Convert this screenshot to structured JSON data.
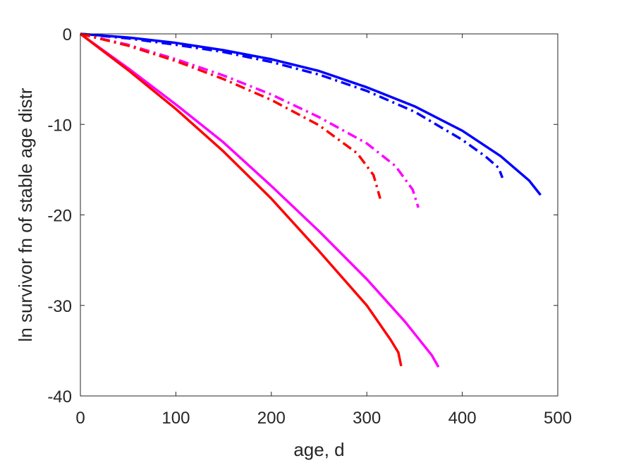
{
  "chart_data": {
    "type": "line",
    "title": "",
    "xlabel": "age, d",
    "ylabel": "ln survivor fn of stable age distr",
    "xlim": [
      0,
      500
    ],
    "ylim": [
      -40,
      0
    ],
    "xticks": [
      0,
      100,
      200,
      300,
      400,
      500
    ],
    "xtick_labels": [
      "0",
      "100",
      "200",
      "300",
      "400",
      "500"
    ],
    "yticks": [
      0,
      -10,
      -20,
      -30,
      -40
    ],
    "ytick_labels": [
      "0",
      "-10",
      "-20",
      "-30",
      "-40"
    ],
    "grid": false,
    "legend": "none",
    "series": [
      {
        "color": "#0000ff",
        "style": "solid",
        "x": [
          0,
          50,
          100,
          150,
          200,
          250,
          300,
          350,
          400,
          440,
          470,
          482
        ],
        "y": [
          0,
          -0.4,
          -1.0,
          -1.8,
          -2.8,
          -4.1,
          -5.9,
          -8.0,
          -10.7,
          -13.5,
          -16.2,
          -17.8
        ]
      },
      {
        "color": "#0000ff",
        "style": "dashdot",
        "x": [
          0,
          50,
          100,
          150,
          200,
          250,
          300,
          350,
          400,
          425,
          438,
          442
        ],
        "y": [
          0,
          -0.5,
          -1.2,
          -2.0,
          -3.1,
          -4.5,
          -6.3,
          -8.6,
          -11.7,
          -13.6,
          -14.8,
          -15.9
        ]
      },
      {
        "color": "#ff00ff",
        "style": "solid",
        "x": [
          0,
          50,
          100,
          150,
          200,
          250,
          300,
          340,
          368,
          375
        ],
        "y": [
          0,
          -3.8,
          -7.8,
          -12.0,
          -16.8,
          -21.8,
          -27.1,
          -31.8,
          -35.5,
          -36.8
        ]
      },
      {
        "color": "#ff00ff",
        "style": "dashdot",
        "x": [
          0,
          50,
          100,
          150,
          200,
          250,
          300,
          330,
          348,
          354
        ],
        "y": [
          0,
          -1.2,
          -2.8,
          -4.6,
          -6.7,
          -9.2,
          -12.1,
          -14.6,
          -17.2,
          -19.2
        ]
      },
      {
        "color": "#ff0000",
        "style": "solid",
        "x": [
          0,
          50,
          100,
          150,
          200,
          250,
          300,
          325,
          333,
          336
        ],
        "y": [
          0,
          -4.0,
          -8.3,
          -13.0,
          -18.2,
          -24.0,
          -30.0,
          -33.8,
          -35.2,
          -36.7
        ]
      },
      {
        "color": "#ff0000",
        "style": "dashdot",
        "x": [
          0,
          50,
          100,
          150,
          200,
          250,
          290,
          307,
          314
        ],
        "y": [
          0,
          -1.3,
          -3.0,
          -5.0,
          -7.3,
          -10.1,
          -13.2,
          -15.6,
          -18.2
        ]
      }
    ]
  }
}
